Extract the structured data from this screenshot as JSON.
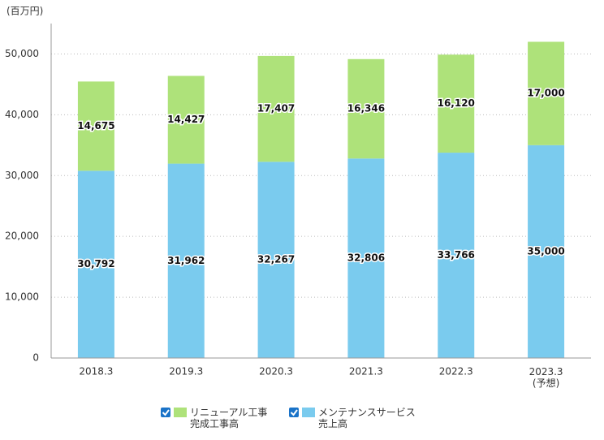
{
  "chart_data": {
    "type": "stacked_bar",
    "y_label": "(百万円)",
    "categories": [
      "2018.3",
      "2019.3",
      "2020.3",
      "2021.3",
      "2022.3",
      "2023.3\n(予想)"
    ],
    "series": [
      {
        "name": "メンテナンスサービス\n売上高",
        "color": "#7acbee",
        "values": [
          30792,
          31962,
          32267,
          32806,
          33766,
          35000
        ],
        "value_labels": [
          "30,792",
          "31,962",
          "32,267",
          "32,806",
          "33,766",
          "35,000"
        ]
      },
      {
        "name": "リニューアル工事\n完成工事高",
        "color": "#aee27a",
        "values": [
          14675,
          14427,
          17407,
          16346,
          16120,
          17000
        ],
        "value_labels": [
          "14,675",
          "14,427",
          "17,407",
          "16,346",
          "16,120",
          "17,000"
        ]
      }
    ],
    "ylim": [
      0,
      55000
    ],
    "yticks": [
      0,
      {
        "value": 10000,
        "label": "10,000"
      },
      {
        "value": 20000,
        "label": "20,000"
      },
      {
        "value": 30000,
        "label": "30,000"
      },
      {
        "value": 40000,
        "label": "40,000"
      },
      {
        "value": 50000,
        "label": "50,000"
      }
    ],
    "grid": true
  }
}
